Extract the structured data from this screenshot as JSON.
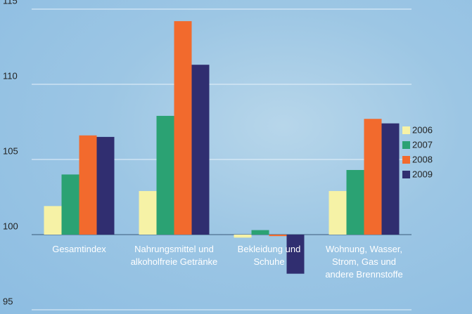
{
  "chart_data": {
    "type": "bar",
    "categories": [
      "Gesamtindex",
      "Nahrungsmittel und alkoholfreie Getränke",
      "Bekleidung und Schuhe",
      "Wohnung, Wasser, Strom, Gas und andere Brennstoffe"
    ],
    "series": [
      {
        "name": "2006",
        "color": "#f6f2a6",
        "values": [
          101.9,
          102.9,
          99.8,
          102.9
        ]
      },
      {
        "name": "2007",
        "color": "#2ba273",
        "values": [
          104.0,
          107.9,
          100.3,
          104.3
        ]
      },
      {
        "name": "2008",
        "color": "#f26a2d",
        "values": [
          106.6,
          114.2,
          99.9,
          107.7
        ]
      },
      {
        "name": "2009",
        "color": "#302e70",
        "values": [
          106.5,
          111.3,
          97.4,
          107.4
        ]
      }
    ],
    "ylim": [
      95,
      115
    ],
    "yticks": [
      95,
      100,
      105,
      110,
      115
    ],
    "base": 100,
    "grid": true,
    "legend": "right"
  }
}
